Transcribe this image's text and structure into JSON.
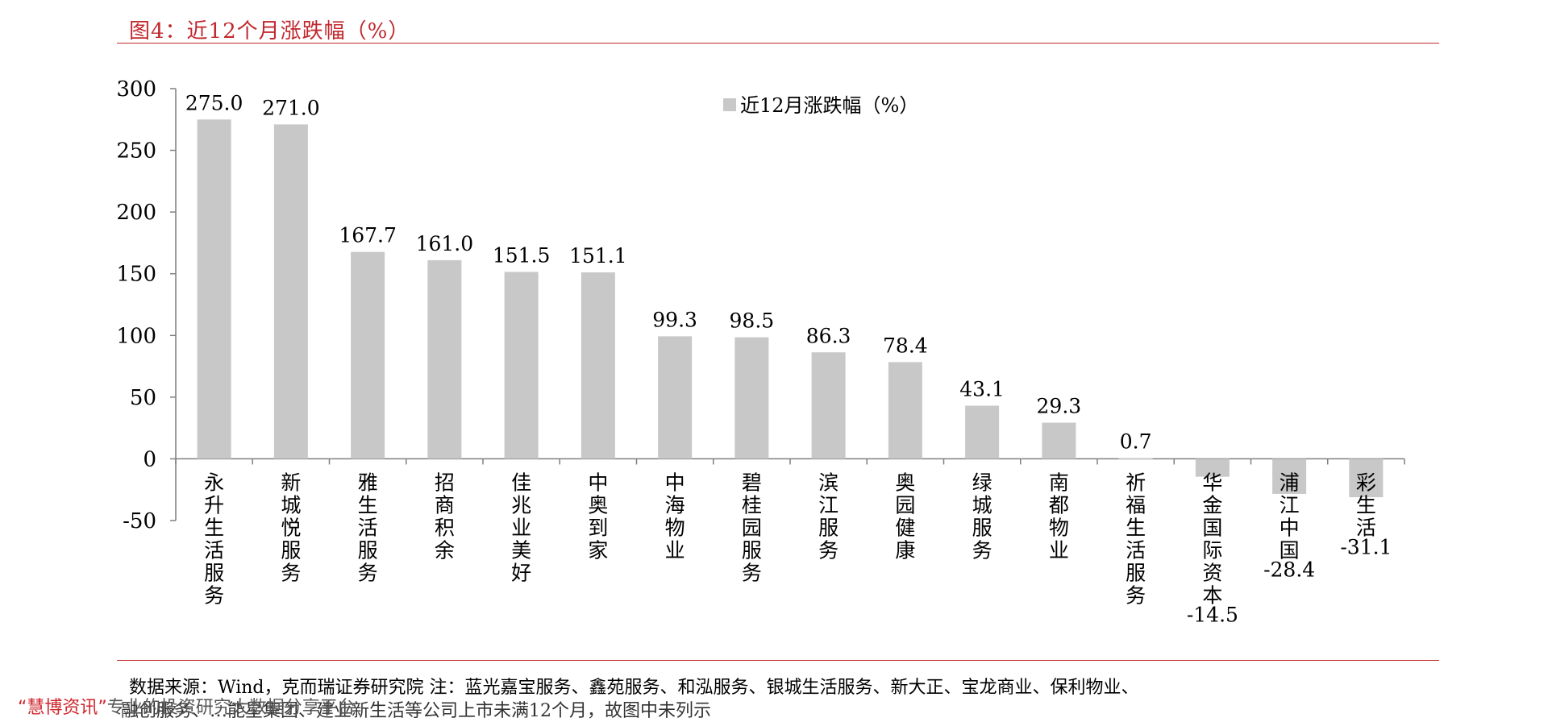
{
  "header": {
    "figure_title": "图4：近12个月涨跌幅（%）"
  },
  "chart_data": {
    "type": "bar",
    "categories": [
      "永升生活服务",
      "新城悦服务",
      "雅生活服务",
      "招商积余",
      "佳兆业美好",
      "中奥到家",
      "中海物业",
      "碧桂园服务",
      "滨江服务",
      "奥园健康",
      "绿城服务",
      "南都物业",
      "祈福生活服务",
      "华金国际资本",
      "浦江中国",
      "彩生活"
    ],
    "series": [
      {
        "name": "近12月涨跌幅（%）",
        "values": [
          275.0,
          271.0,
          167.7,
          161.0,
          151.5,
          151.1,
          99.3,
          98.5,
          86.3,
          78.4,
          43.1,
          29.3,
          0.7,
          -14.5,
          -28.4,
          -31.1
        ]
      }
    ],
    "value_labels": [
      "275.0",
      "271.0",
      "167.7",
      "161.0",
      "151.5",
      "151.1",
      "99.3",
      "98.5",
      "86.3",
      "78.4",
      "43.1",
      "29.3",
      "0.7",
      "-14.5",
      "-28.4",
      "-31.1"
    ],
    "y_ticks": [
      "300",
      "250",
      "200",
      "150",
      "100",
      "50",
      "0",
      "-50"
    ],
    "ylim": [
      -50,
      300
    ],
    "xlabel": "",
    "ylabel": "",
    "legend_position": "top-center",
    "grid": false,
    "bar_color": "#c8c8c8"
  },
  "footer": {
    "source_line": "数据来源：Wind，克而瑞证券研究院   注：蓝光嘉宝服务、鑫苑服务、和泓服务、银城生活服务、新大正、宝龙商业、保利物业、",
    "source_line2": "融创服务、…能星集团、建业新生活等公司上市未满12个月，故图中未列示",
    "watermark_brand": "“慧博资讯”",
    "watermark_rest": "专业的投资研究大数据分享平台"
  }
}
